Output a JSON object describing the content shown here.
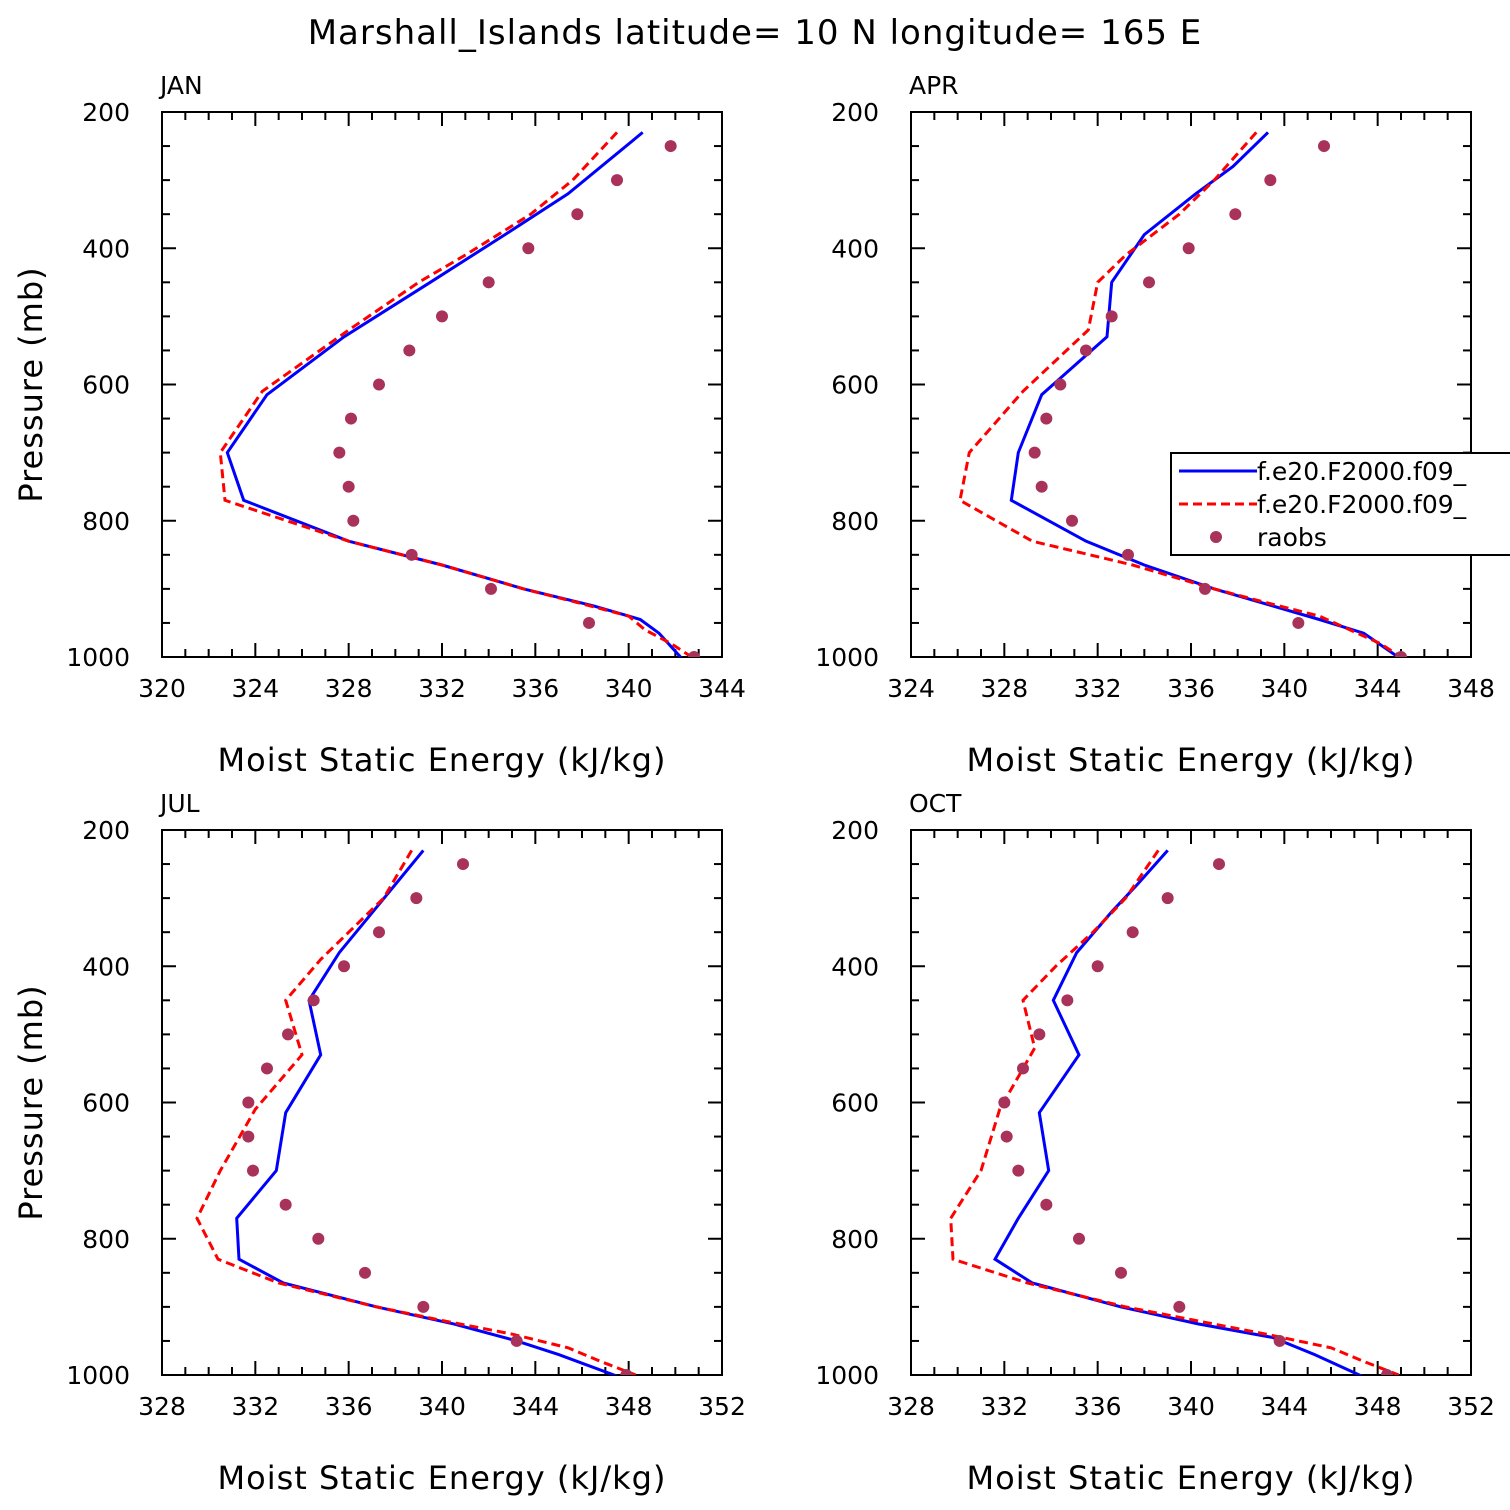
{
  "title": "Marshall_Islands  latitude= 10 N longitude= 165 E",
  "colors": {
    "model1": "#0000ff",
    "model2": "#ff0000",
    "raobs": "#a8325a",
    "axis": "#000000"
  },
  "legend": {
    "entries": [
      {
        "label": "f.e20.F2000.f09_",
        "style": "solid",
        "color": "#0000ff"
      },
      {
        "label": "f.e20.F2000.f09_",
        "style": "dashed",
        "color": "#ff0000"
      },
      {
        "label": "raobs",
        "style": "marker",
        "color": "#a8325a"
      }
    ]
  },
  "chart_data": [
    {
      "type": "line",
      "panel": "JAN",
      "xlabel": "Moist Static Energy (kJ/kg)",
      "ylabel": "Pressure (mb)",
      "xlim": [
        320,
        344
      ],
      "ylim": [
        200,
        1000
      ],
      "xticks": [
        320,
        324,
        328,
        332,
        336,
        340,
        344
      ],
      "yticks": [
        200,
        400,
        600,
        800,
        1000
      ],
      "series": [
        {
          "name": "f.e20.F2000.f09_ (solid)",
          "pressure": [
            230,
            320,
            380,
            450,
            530,
            615,
            700,
            770,
            830,
            865,
            900,
            925,
            945,
            965,
            1003
          ],
          "values": [
            340.6,
            337.4,
            334.7,
            331.5,
            327.8,
            324.5,
            322.8,
            323.5,
            328.0,
            332.0,
            335.5,
            338.5,
            340.5,
            341.3,
            342.3
          ]
        },
        {
          "name": "f.e20.F2000.f09_ (dashed)",
          "pressure": [
            230,
            300,
            350,
            410,
            450,
            520,
            610,
            700,
            770,
            830,
            865,
            900,
            920,
            940,
            960,
            980,
            1000
          ],
          "values": [
            339.5,
            337.6,
            335.8,
            333.0,
            331.0,
            328.0,
            324.3,
            322.5,
            322.7,
            328.0,
            332.0,
            335.5,
            337.8,
            340.0,
            340.7,
            341.8,
            342.7
          ]
        },
        {
          "name": "raobs",
          "pressure": [
            250,
            300,
            350,
            400,
            450,
            500,
            550,
            600,
            650,
            700,
            750,
            800,
            850,
            900,
            950,
            1000
          ],
          "values": [
            341.8,
            339.5,
            337.8,
            335.7,
            334.0,
            332.0,
            330.6,
            329.3,
            328.1,
            327.6,
            328.0,
            328.2,
            330.7,
            334.1,
            338.3,
            342.8
          ]
        }
      ]
    },
    {
      "type": "line",
      "panel": "APR",
      "xlabel": "Moist Static Energy (kJ/kg)",
      "ylabel": "",
      "xlim": [
        324,
        348
      ],
      "ylim": [
        200,
        1000
      ],
      "xticks": [
        324,
        328,
        332,
        336,
        340,
        344,
        348
      ],
      "yticks": [
        200,
        400,
        600,
        800,
        1000
      ],
      "series": [
        {
          "name": "f.e20.F2000.f09_ (solid)",
          "pressure": [
            230,
            280,
            320,
            380,
            450,
            530,
            615,
            700,
            770,
            830,
            865,
            900,
            925,
            945,
            965,
            1003
          ],
          "values": [
            339.3,
            337.8,
            336.2,
            334.0,
            332.6,
            332.4,
            329.6,
            328.6,
            328.3,
            331.5,
            334.0,
            337.0,
            339.5,
            341.5,
            343.4,
            345.0
          ]
        },
        {
          "name": "f.e20.F2000.f09_ (dashed)",
          "pressure": [
            230,
            300,
            350,
            410,
            450,
            520,
            610,
            700,
            770,
            830,
            865,
            900,
            920,
            940,
            960,
            980,
            1000
          ],
          "values": [
            338.8,
            337.0,
            335.5,
            333.2,
            332.0,
            331.6,
            328.8,
            326.5,
            326.1,
            329.2,
            333.5,
            337.0,
            339.2,
            341.5,
            342.8,
            344.1,
            345.0
          ]
        },
        {
          "name": "raobs",
          "pressure": [
            250,
            300,
            350,
            400,
            450,
            500,
            550,
            600,
            650,
            700,
            750,
            800,
            850,
            900,
            950,
            1000
          ],
          "values": [
            341.7,
            339.4,
            337.9,
            335.9,
            334.2,
            332.6,
            331.5,
            330.4,
            329.8,
            329.3,
            329.6,
            330.9,
            333.3,
            336.6,
            340.6,
            345.0
          ]
        }
      ]
    },
    {
      "type": "line",
      "panel": "JUL",
      "xlabel": "Moist Static Energy (kJ/kg)",
      "ylabel": "Pressure (mb)",
      "xlim": [
        328,
        352
      ],
      "ylim": [
        200,
        1000
      ],
      "xticks": [
        328,
        332,
        336,
        340,
        344,
        348,
        352
      ],
      "yticks": [
        200,
        400,
        600,
        800,
        1000
      ],
      "series": [
        {
          "name": "f.e20.F2000.f09_ (solid)",
          "pressure": [
            230,
            280,
            330,
            380,
            450,
            530,
            615,
            700,
            770,
            830,
            865,
            900,
            925,
            950,
            970,
            1003
          ],
          "values": [
            339.2,
            338.0,
            336.8,
            335.6,
            334.3,
            334.8,
            333.3,
            332.9,
            331.2,
            331.3,
            333.2,
            337.2,
            340.5,
            343.2,
            345.0,
            347.6
          ]
        },
        {
          "name": "f.e20.F2000.f09_ (dashed)",
          "pressure": [
            230,
            300,
            350,
            390,
            450,
            530,
            610,
            700,
            770,
            830,
            865,
            900,
            920,
            940,
            960,
            980,
            1000
          ],
          "values": [
            338.7,
            337.5,
            336.0,
            334.8,
            333.3,
            334.0,
            332.0,
            330.5,
            329.5,
            330.4,
            333.0,
            337.2,
            340.0,
            343.0,
            345.4,
            346.8,
            348.3
          ]
        },
        {
          "name": "raobs",
          "pressure": [
            250,
            300,
            350,
            400,
            450,
            500,
            550,
            600,
            650,
            700,
            750,
            800,
            850,
            900,
            950,
            1000
          ],
          "values": [
            340.9,
            338.9,
            337.3,
            335.8,
            334.5,
            333.4,
            332.5,
            331.7,
            331.7,
            331.9,
            333.3,
            334.7,
            336.7,
            339.2,
            343.2,
            347.9
          ]
        }
      ]
    },
    {
      "type": "line",
      "panel": "OCT",
      "xlabel": "Moist Static Energy (kJ/kg)",
      "ylabel": "",
      "xlim": [
        328,
        352
      ],
      "ylim": [
        200,
        1000
      ],
      "xticks": [
        328,
        332,
        336,
        340,
        344,
        348,
        352
      ],
      "yticks": [
        200,
        400,
        600,
        800,
        1000
      ],
      "series": [
        {
          "name": "f.e20.F2000.f09_ (solid)",
          "pressure": [
            230,
            280,
            320,
            380,
            450,
            530,
            615,
            700,
            770,
            830,
            865,
            900,
            925,
            945,
            970,
            1003
          ],
          "values": [
            339.0,
            337.7,
            336.6,
            335.1,
            334.1,
            335.2,
            333.5,
            333.9,
            332.6,
            331.6,
            333.2,
            337.0,
            340.3,
            343.5,
            345.3,
            347.4
          ]
        },
        {
          "name": "f.e20.F2000.f09_ (dashed)",
          "pressure": [
            230,
            300,
            350,
            400,
            450,
            520,
            610,
            700,
            770,
            830,
            865,
            900,
            920,
            940,
            960,
            980,
            1000
          ],
          "values": [
            338.6,
            337.2,
            335.8,
            334.2,
            332.8,
            333.3,
            331.8,
            331.0,
            329.7,
            329.8,
            333.0,
            337.2,
            340.2,
            343.2,
            346.0,
            347.4,
            348.9
          ]
        },
        {
          "name": "raobs",
          "pressure": [
            250,
            300,
            350,
            400,
            450,
            500,
            550,
            600,
            650,
            700,
            750,
            800,
            850,
            900,
            950,
            1000
          ],
          "values": [
            341.2,
            339.0,
            337.5,
            336.0,
            334.7,
            333.5,
            332.8,
            332.0,
            332.1,
            332.6,
            333.8,
            335.2,
            337.0,
            339.5,
            343.8,
            348.4
          ]
        }
      ]
    }
  ]
}
